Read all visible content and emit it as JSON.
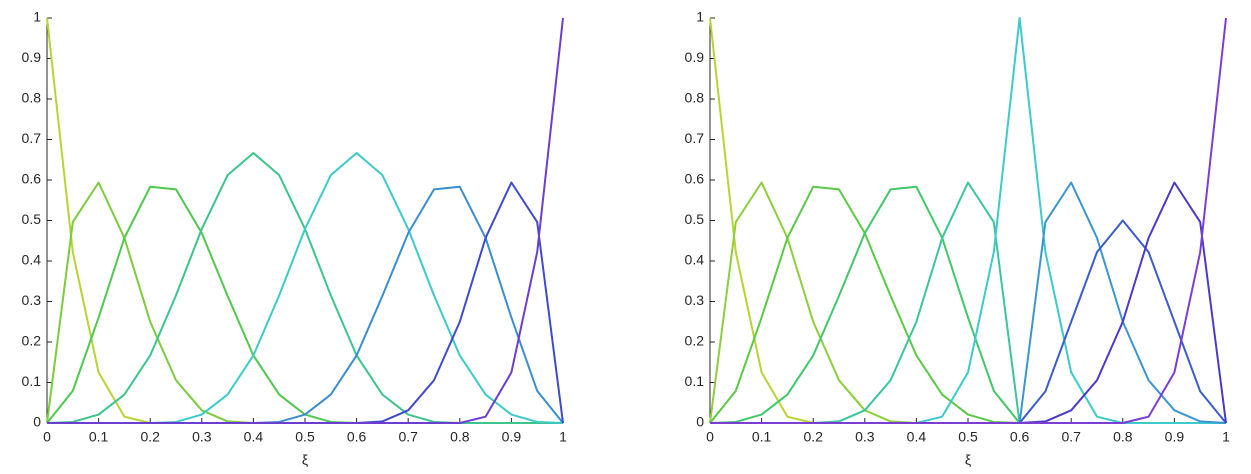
{
  "chart_data": [
    {
      "type": "line",
      "xlabel": "ξ",
      "x": [
        0,
        0.05,
        0.1,
        0.15,
        0.2,
        0.25,
        0.3,
        0.35,
        0.4,
        0.45,
        0.5,
        0.55,
        0.6,
        0.65,
        0.7,
        0.75,
        0.8,
        0.85,
        0.9,
        0.95,
        1
      ],
      "xlim": [
        0,
        1
      ],
      "ylim": [
        0,
        1
      ],
      "xticks": [
        0,
        0.1,
        0.2,
        0.3,
        0.4,
        0.5,
        0.6,
        0.7,
        0.8,
        0.9,
        1
      ],
      "yticks": [
        0,
        0.1,
        0.2,
        0.3,
        0.4,
        0.5,
        0.6,
        0.7,
        0.8,
        0.9,
        1
      ],
      "grid": false,
      "series": [
        {
          "color": "#b8d434",
          "values": [
            1,
            0.4219,
            0.125,
            0.0156,
            0,
            0,
            0,
            0,
            0,
            0,
            0,
            0,
            0,
            0,
            0,
            0,
            0,
            0,
            0,
            0,
            0
          ]
        },
        {
          "color": "#7ccb3c",
          "values": [
            0,
            0.4961,
            0.5938,
            0.457,
            0.25,
            0.1055,
            0.0313,
            0.0039,
            0,
            0,
            0,
            0,
            0,
            0,
            0,
            0,
            0,
            0,
            0,
            0,
            0
          ]
        },
        {
          "color": "#4ec84e",
          "values": [
            0,
            0.0794,
            0.2604,
            0.457,
            0.5833,
            0.5768,
            0.4688,
            0.3138,
            0.1667,
            0.0703,
            0.0208,
            0.0026,
            0,
            0,
            0,
            0,
            0,
            0,
            0,
            0,
            0
          ]
        },
        {
          "color": "#3cc48c",
          "values": [
            0,
            0.0026,
            0.0208,
            0.0703,
            0.1667,
            0.3151,
            0.4792,
            0.612,
            0.6667,
            0.612,
            0.4792,
            0.3151,
            0.1667,
            0.0703,
            0.0208,
            0.0026,
            0,
            0,
            0,
            0,
            0
          ]
        },
        {
          "color": "#3ccac8",
          "values": [
            0,
            0,
            0,
            0,
            0,
            0.0026,
            0.0208,
            0.0703,
            0.1667,
            0.3151,
            0.4792,
            0.612,
            0.6667,
            0.612,
            0.4792,
            0.3151,
            0.1667,
            0.0703,
            0.0208,
            0.0026,
            0
          ]
        },
        {
          "color": "#3a8ed0",
          "values": [
            0,
            0,
            0,
            0,
            0,
            0,
            0,
            0,
            0,
            0.0026,
            0.0208,
            0.0703,
            0.1667,
            0.3138,
            0.4688,
            0.5768,
            0.5833,
            0.457,
            0.2604,
            0.0794,
            0
          ]
        },
        {
          "color": "#3f4acc",
          "values": [
            0,
            0,
            0,
            0,
            0,
            0,
            0,
            0,
            0,
            0,
            0,
            0,
            0,
            0.0039,
            0.0313,
            0.1055,
            0.25,
            0.457,
            0.5938,
            0.4961,
            0
          ]
        },
        {
          "color": "#6c3ed0",
          "values": [
            0,
            0,
            0,
            0,
            0,
            0,
            0,
            0,
            0,
            0,
            0,
            0,
            0,
            0,
            0,
            0,
            0,
            0.0156,
            0.125,
            0.4219,
            1
          ]
        }
      ]
    },
    {
      "type": "line",
      "xlabel": "ξ",
      "x": [
        0,
        0.05,
        0.1,
        0.15,
        0.2,
        0.25,
        0.3,
        0.35,
        0.4,
        0.45,
        0.5,
        0.55,
        0.6,
        0.65,
        0.7,
        0.75,
        0.8,
        0.85,
        0.9,
        0.95,
        1
      ],
      "xlim": [
        0,
        1
      ],
      "ylim": [
        0,
        1
      ],
      "xticks": [
        0,
        0.1,
        0.2,
        0.3,
        0.4,
        0.5,
        0.6,
        0.7,
        0.8,
        0.9,
        1
      ],
      "yticks": [
        0,
        0.1,
        0.2,
        0.3,
        0.4,
        0.5,
        0.6,
        0.7,
        0.8,
        0.9,
        1
      ],
      "grid": false,
      "series": [
        {
          "color": "#b8d434",
          "values": [
            1,
            0.4219,
            0.125,
            0.0156,
            0,
            0,
            0,
            0,
            0,
            0,
            0,
            0,
            0,
            0,
            0,
            0,
            0,
            0,
            0,
            0,
            0
          ]
        },
        {
          "color": "#8ccf3a",
          "values": [
            0,
            0.4961,
            0.5938,
            0.457,
            0.25,
            0.1055,
            0.0313,
            0.0039,
            0,
            0,
            0,
            0,
            0,
            0,
            0,
            0,
            0,
            0,
            0,
            0,
            0
          ]
        },
        {
          "color": "#5ac944",
          "values": [
            0,
            0.0794,
            0.2604,
            0.457,
            0.5833,
            0.5768,
            0.4688,
            0.3138,
            0.1667,
            0.0703,
            0.0208,
            0.0026,
            0,
            0,
            0,
            0,
            0,
            0,
            0,
            0,
            0
          ]
        },
        {
          "color": "#42c66a",
          "values": [
            0,
            0.0026,
            0.0208,
            0.0703,
            0.1667,
            0.3138,
            0.4688,
            0.5768,
            0.5833,
            0.457,
            0.2604,
            0.0794,
            0,
            0,
            0,
            0,
            0,
            0,
            0,
            0,
            0
          ]
        },
        {
          "color": "#3bc59c",
          "values": [
            0,
            0,
            0,
            0,
            0,
            0.0039,
            0.0313,
            0.1055,
            0.25,
            0.457,
            0.5938,
            0.4961,
            0,
            0,
            0,
            0,
            0,
            0,
            0,
            0,
            0
          ]
        },
        {
          "color": "#3ccaca",
          "values": [
            0,
            0,
            0,
            0,
            0,
            0,
            0,
            0,
            0,
            0.0156,
            0.125,
            0.4219,
            1,
            0.4219,
            0.125,
            0.0156,
            0,
            0,
            0,
            0,
            0
          ]
        },
        {
          "color": "#3a96d0",
          "values": [
            0,
            0,
            0,
            0,
            0,
            0,
            0,
            0,
            0,
            0,
            0,
            0,
            0,
            0.4961,
            0.5938,
            0.457,
            0.25,
            0.1055,
            0.0313,
            0.0039,
            0
          ]
        },
        {
          "color": "#3b5ccc",
          "values": [
            0,
            0,
            0,
            0,
            0,
            0,
            0,
            0,
            0,
            0,
            0,
            0,
            0,
            0.0781,
            0.25,
            0.4219,
            0.5,
            0.4219,
            0.25,
            0.0781,
            0
          ]
        },
        {
          "color": "#4a3acc",
          "values": [
            0,
            0,
            0,
            0,
            0,
            0,
            0,
            0,
            0,
            0,
            0,
            0,
            0,
            0.0039,
            0.0313,
            0.1055,
            0.25,
            0.457,
            0.5938,
            0.4961,
            0
          ]
        },
        {
          "color": "#7c3ed2",
          "values": [
            0,
            0,
            0,
            0,
            0,
            0,
            0,
            0,
            0,
            0,
            0,
            0,
            0,
            0,
            0,
            0,
            0,
            0.0156,
            0.125,
            0.4219,
            1
          ]
        }
      ]
    }
  ]
}
